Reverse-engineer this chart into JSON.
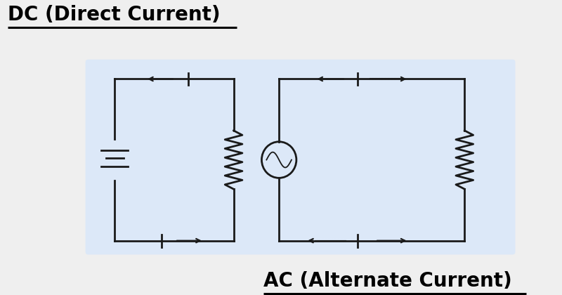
{
  "bg_color": "#efefef",
  "panel_color": "#dce8f8",
  "dc_title": "DC (Direct Current)",
  "ac_title": "AC (Alternate Current)",
  "title_fontsize": 20,
  "line_color": "#1a1a1a",
  "line_width": 2.0
}
